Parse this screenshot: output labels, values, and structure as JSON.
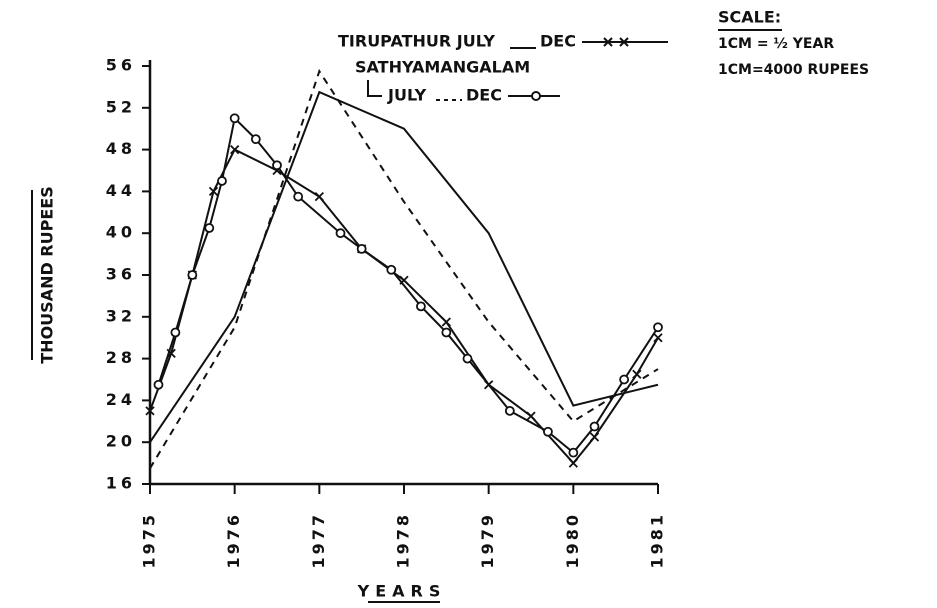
{
  "chart_data": {
    "type": "line",
    "y_label": "THOUSAND RUPEES",
    "x_label": "YEARS",
    "legend_texts": [
      "TIRUPATHUR JULY",
      "DEC",
      "SATHYAMANGALAM",
      "JULY",
      "DEC"
    ],
    "scale_texts": [
      "SCALE:",
      "1CM = ½ YEAR",
      "1CM=4000 RUPEES"
    ],
    "xlim": [
      1975,
      1981
    ],
    "xticks": [
      1975,
      1976,
      1977,
      1978,
      1979,
      1980,
      1981
    ],
    "ylim": [
      16,
      56
    ],
    "yticks": [
      16,
      20,
      24,
      28,
      32,
      36,
      40,
      44,
      48,
      52,
      56
    ],
    "series": [
      {
        "color": "#111",
        "style": "solid",
        "marker": "none",
        "x": [
          1975,
          1976,
          1977,
          1978,
          1979,
          1980,
          1981
        ],
        "values": [
          20,
          32,
          53.5,
          50,
          40,
          23.5,
          25.5
        ]
      },
      {
        "color": "#111",
        "style": "solid",
        "marker": "x",
        "x": [
          1975,
          1975.25,
          1975.5,
          1975.75,
          1976,
          1976.5,
          1977,
          1977.5,
          1978,
          1978.5,
          1979,
          1979.5,
          1980,
          1980.25,
          1980.75,
          1981
        ],
        "values": [
          23,
          28.5,
          36,
          44,
          48,
          46,
          43.5,
          38.5,
          35.5,
          31.5,
          25.5,
          22.5,
          18,
          20.5,
          26.5,
          30
        ]
      },
      {
        "color": "#111",
        "style": "dashed",
        "marker": "none",
        "x": [
          1975,
          1976,
          1977,
          1978,
          1979,
          1980,
          1981
        ],
        "values": [
          17.5,
          31,
          55.5,
          43,
          31.5,
          22,
          27
        ]
      },
      {
        "color": "#111",
        "style": "solid",
        "marker": "o",
        "x": [
          1975.1,
          1975.3,
          1975.5,
          1975.7,
          1975.85,
          1976,
          1976.25,
          1976.5,
          1976.75,
          1977.25,
          1977.5,
          1977.85,
          1978.2,
          1978.5,
          1978.75,
          1979.25,
          1979.7,
          1980,
          1980.25,
          1980.6,
          1981
        ],
        "values": [
          25.5,
          30.5,
          36,
          40.5,
          45,
          51,
          49,
          46.5,
          43.5,
          40,
          38.5,
          36.5,
          33,
          30.5,
          28,
          23,
          21,
          19,
          21.5,
          26,
          31
        ]
      }
    ]
  }
}
